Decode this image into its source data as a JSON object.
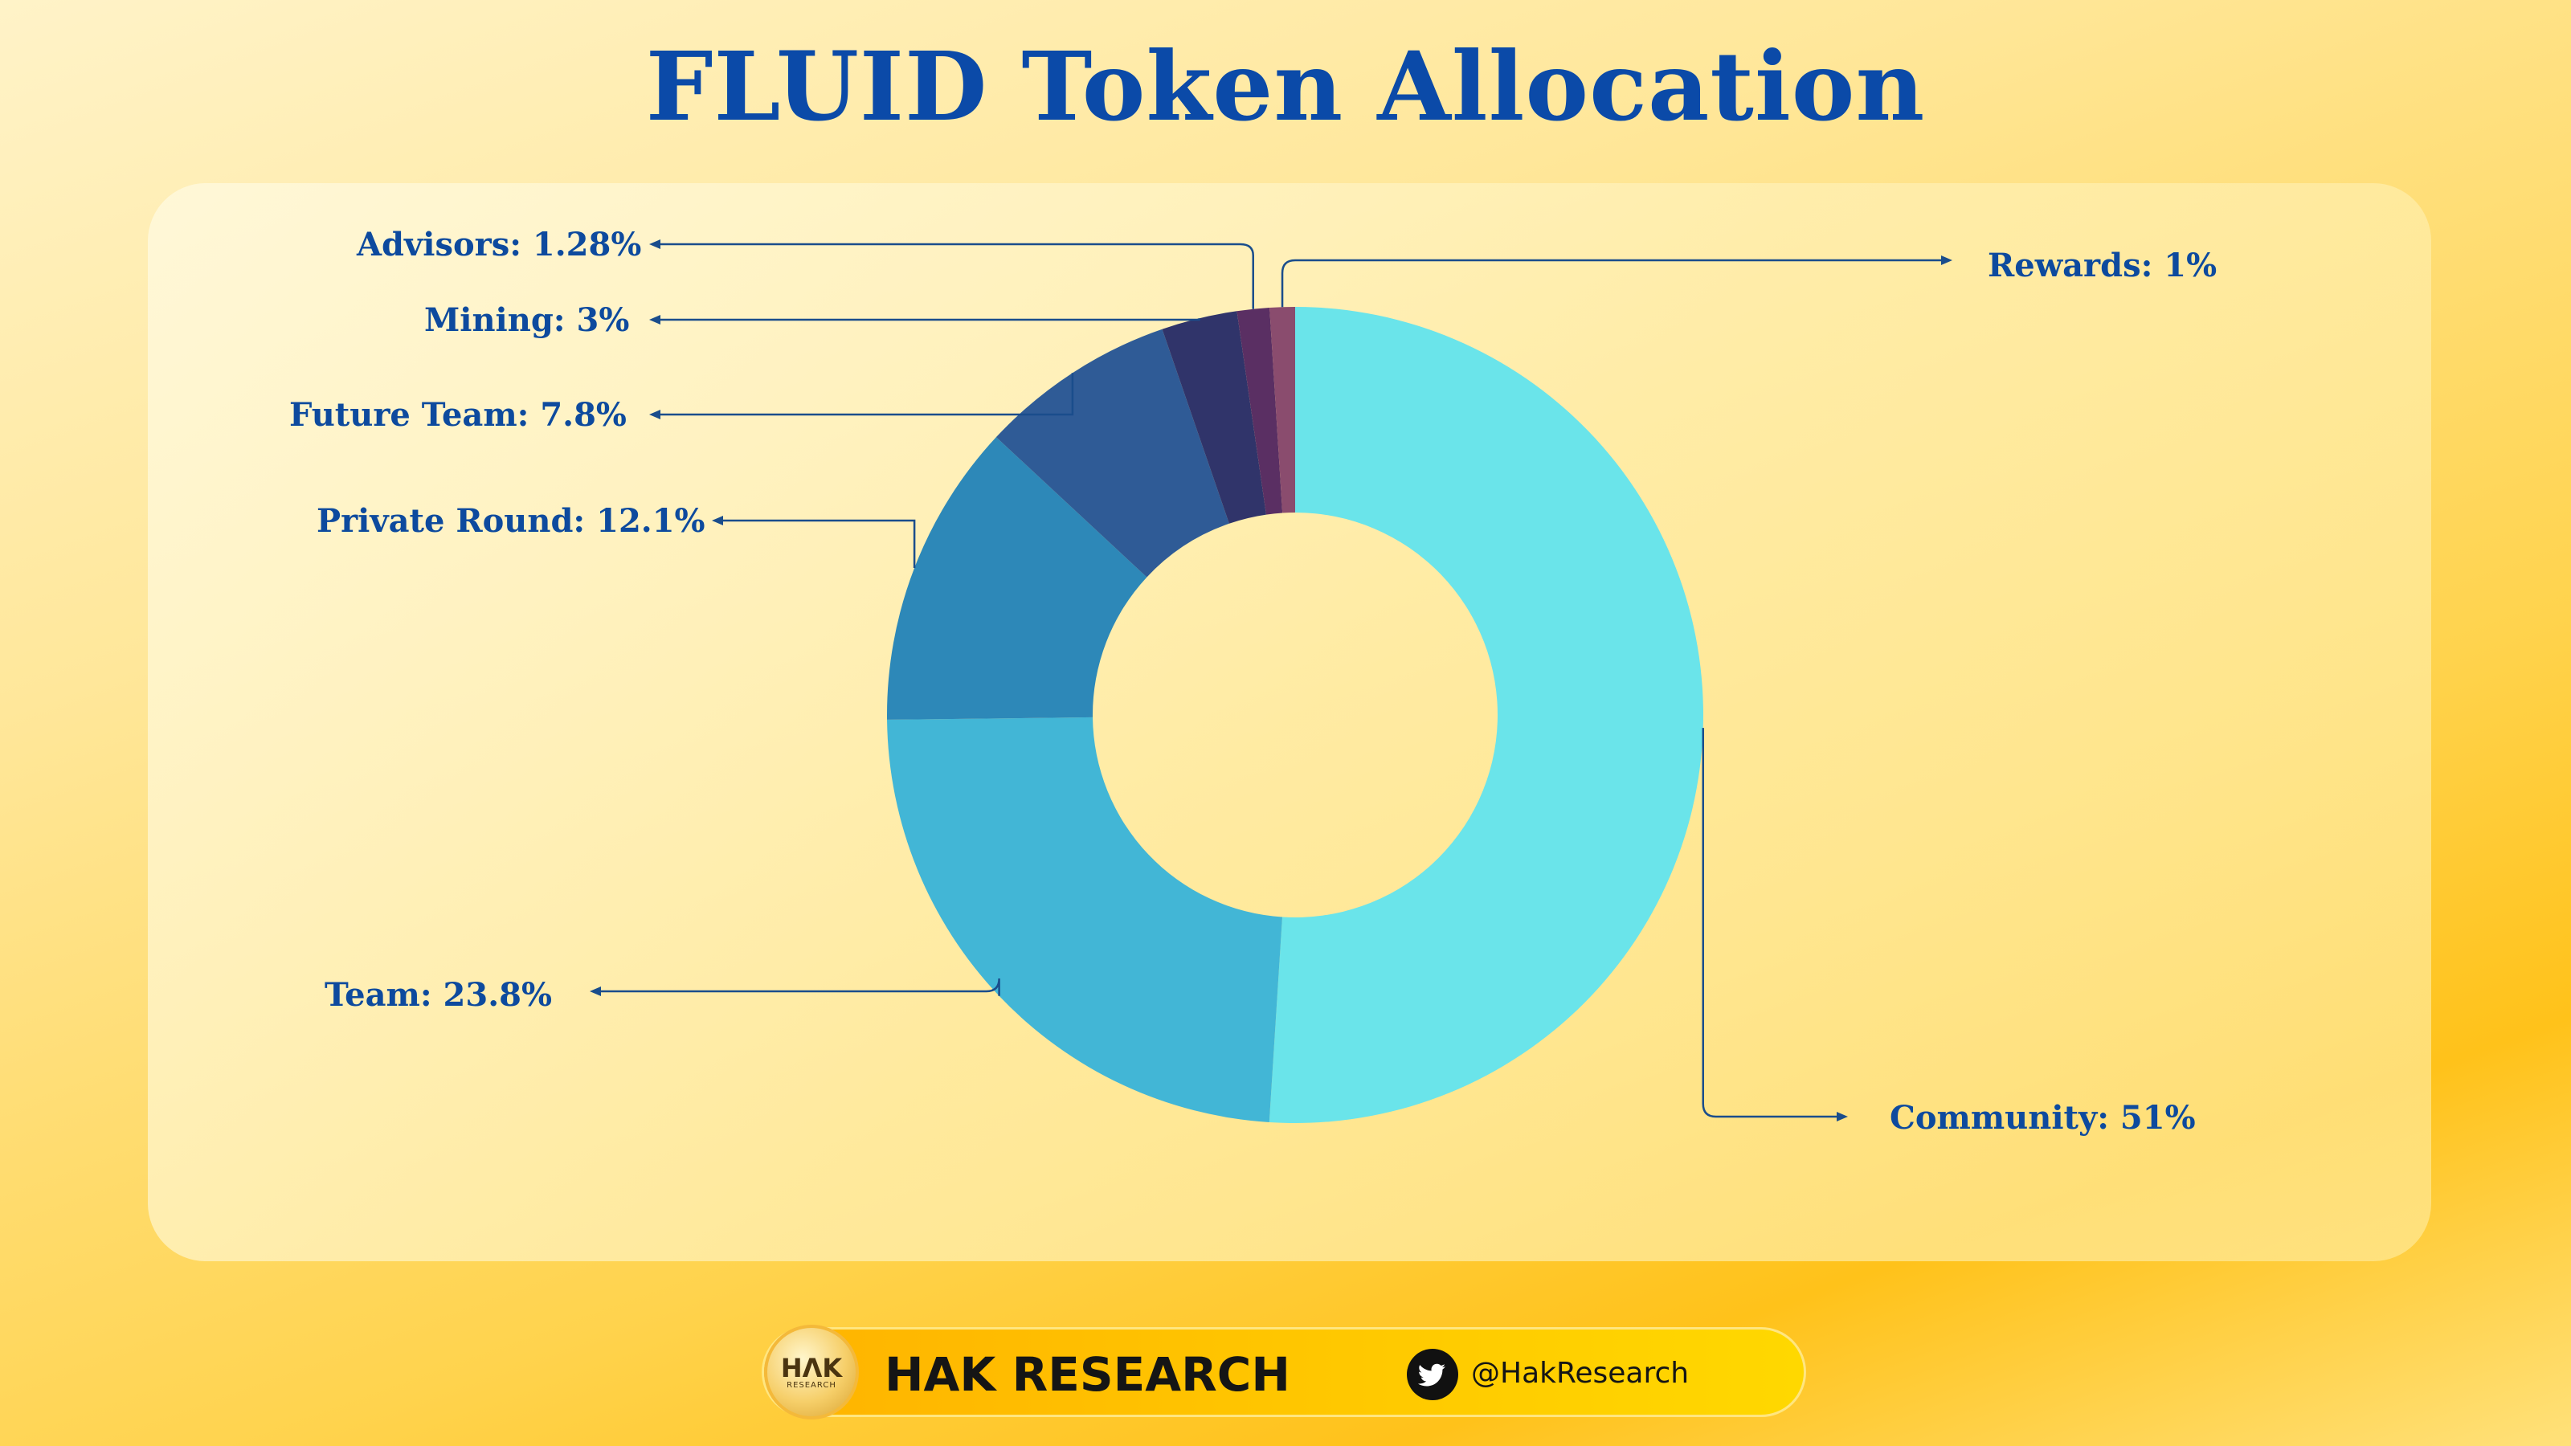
{
  "chart_data": {
    "type": "pie",
    "variant": "donut",
    "title": "FLUID Token Allocation",
    "slices": [
      {
        "name": "Community",
        "value": 51,
        "label": "Community: 51%",
        "color": "#6ae4ea"
      },
      {
        "name": "Team",
        "value": 23.8,
        "label": "Team: 23.8%",
        "color": "#42b6d6"
      },
      {
        "name": "Private Round",
        "value": 12.1,
        "label": "Private Round: 12.1%",
        "color": "#2d88b8"
      },
      {
        "name": "Future Team",
        "value": 7.8,
        "label": "Future Team: 7.8%",
        "color": "#2f5b96"
      },
      {
        "name": "Mining",
        "value": 3,
        "label": "Mining: 3%",
        "color": "#30346a"
      },
      {
        "name": "Advisors",
        "value": 1.28,
        "label": "Advisors: 1.28%",
        "color": "#5a2f63"
      },
      {
        "name": "Rewards",
        "value": 1,
        "label": "Rewards: 1%",
        "color": "#8a4c6e"
      }
    ]
  },
  "footer": {
    "logo_text": "HΛK",
    "logo_subtext": "RESEARCH",
    "brand": "HAK RESEARCH",
    "handle": "@HakResearch",
    "icon": "twitter-icon"
  }
}
